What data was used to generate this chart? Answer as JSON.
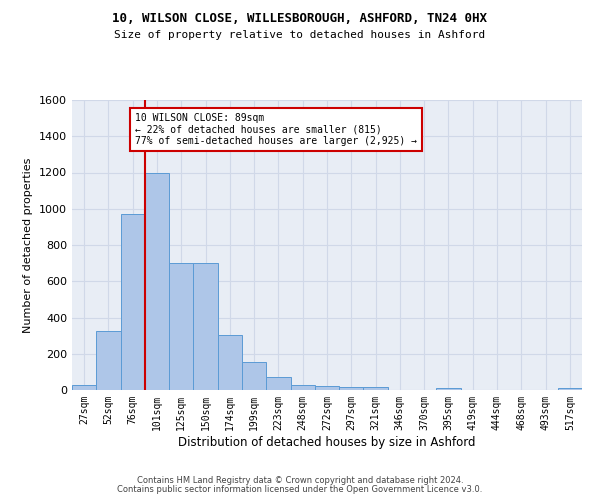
{
  "title1": "10, WILSON CLOSE, WILLESBOROUGH, ASHFORD, TN24 0HX",
  "title2": "Size of property relative to detached houses in Ashford",
  "xlabel": "Distribution of detached houses by size in Ashford",
  "ylabel": "Number of detached properties",
  "bin_labels": [
    "27sqm",
    "52sqm",
    "76sqm",
    "101sqm",
    "125sqm",
    "150sqm",
    "174sqm",
    "199sqm",
    "223sqm",
    "248sqm",
    "272sqm",
    "297sqm",
    "321sqm",
    "346sqm",
    "370sqm",
    "395sqm",
    "419sqm",
    "444sqm",
    "468sqm",
    "493sqm",
    "517sqm"
  ],
  "bar_heights": [
    30,
    325,
    970,
    1200,
    700,
    700,
    305,
    155,
    70,
    30,
    20,
    15,
    15,
    0,
    0,
    10,
    0,
    0,
    0,
    0,
    10
  ],
  "bar_color": "#aec6e8",
  "bar_edge_color": "#5b9bd5",
  "bar_width": 1.0,
  "red_line_x": 2.5,
  "annotation_text": "10 WILSON CLOSE: 89sqm\n← 22% of detached houses are smaller (815)\n77% of semi-detached houses are larger (2,925) →",
  "annotation_box_color": "#ffffff",
  "annotation_box_edge_color": "#cc0000",
  "ylim": [
    0,
    1600
  ],
  "yticks": [
    0,
    200,
    400,
    600,
    800,
    1000,
    1200,
    1400,
    1600
  ],
  "grid_color": "#d0d8e8",
  "bg_color": "#e8edf5",
  "footer1": "Contains HM Land Registry data © Crown copyright and database right 2024.",
  "footer2": "Contains public sector information licensed under the Open Government Licence v3.0."
}
